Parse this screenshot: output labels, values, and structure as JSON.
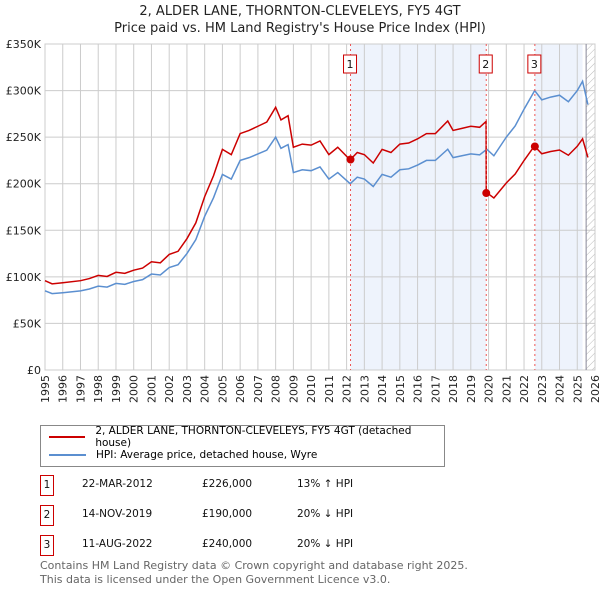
{
  "chart_data": {
    "type": "line",
    "title": "2, ALDER LANE, THORNTON-CLEVELEYS, FY5 4GT",
    "subtitle": "Price paid vs. HM Land Registry's House Price Index (HPI)",
    "xlim": [
      1995,
      2026
    ],
    "ylim": [
      0,
      350000
    ],
    "yticks": [
      0,
      50000,
      100000,
      150000,
      200000,
      250000,
      300000,
      350000
    ],
    "ytick_labels": [
      "£0",
      "£50K",
      "£100K",
      "£150K",
      "£200K",
      "£250K",
      "£300K",
      "£350K"
    ],
    "xticks": [
      "1995",
      "1996",
      "1997",
      "1998",
      "1999",
      "2000",
      "2001",
      "2002",
      "2003",
      "2004",
      "2005",
      "2006",
      "2007",
      "2008",
      "2009",
      "2010",
      "2011",
      "2012",
      "2013",
      "2014",
      "2015",
      "2016",
      "2017",
      "2018",
      "2019",
      "2020",
      "2021",
      "2022",
      "2023",
      "2024",
      "2025",
      "2026"
    ],
    "grid": true,
    "hpi": {
      "name": "HPI: Average price, detached house, Wyre",
      "color": "#5b8fd0",
      "x": [
        1995,
        1995.4,
        1996,
        1997,
        1997.5,
        1998,
        1998.5,
        1999,
        1999.5,
        2000,
        2000.5,
        2001,
        2001.5,
        2002,
        2002.5,
        2003,
        2003.5,
        2004,
        2004.5,
        2005,
        2005.5,
        2006,
        2006.5,
        2007,
        2007.5,
        2008,
        2008.3,
        2008.7,
        2009,
        2009.5,
        2010,
        2010.5,
        2011,
        2011.5,
        2012.2,
        2012.6,
        2013,
        2013.5,
        2014,
        2014.5,
        2015,
        2015.5,
        2016,
        2016.5,
        2017,
        2017.7,
        2018,
        2018.5,
        2019,
        2019.5,
        2019.9,
        2020.3,
        2021,
        2021.5,
        2022,
        2022.6,
        2023,
        2023.5,
        2024,
        2024.5,
        2025,
        2025.3,
        2025.6
      ],
      "y": [
        85000,
        82000,
        83000,
        85000,
        87000,
        90000,
        89000,
        93000,
        92000,
        95000,
        97000,
        103000,
        102000,
        110000,
        113000,
        125000,
        140000,
        165000,
        185000,
        210000,
        205000,
        225000,
        228000,
        232000,
        236000,
        250000,
        238000,
        242000,
        212000,
        215000,
        214000,
        218000,
        205000,
        212000,
        200000,
        207000,
        205000,
        197000,
        210000,
        207000,
        215000,
        216000,
        220000,
        225000,
        225000,
        237000,
        228000,
        230000,
        232000,
        231000,
        237000,
        230000,
        250000,
        262000,
        280000,
        300000,
        290000,
        293000,
        295000,
        288000,
        300000,
        310000,
        285000
      ]
    },
    "sales": [
      {
        "label": "1",
        "date": "22-MAR-2012",
        "x": 2012.22,
        "price": "£226,000",
        "value": 226000,
        "hpi_delta": "13% ↑ HPI"
      },
      {
        "label": "2",
        "date": "14-NOV-2019",
        "x": 2019.87,
        "price": "£190,000",
        "value": 190000,
        "hpi_delta": "20% ↓ HPI"
      },
      {
        "label": "3",
        "date": "11-AUG-2022",
        "x": 2022.61,
        "price": "£240,000",
        "value": 240000,
        "hpi_delta": "20% ↓ HPI"
      }
    ],
    "property": {
      "name": "2, ALDER LANE, THORNTON-CLEVELEYS, FY5 4GT (detached house)",
      "color": "#cc0000"
    },
    "shaded_ranges": [
      [
        2012.22,
        2019.87
      ],
      [
        2022.61,
        2025.3
      ]
    ],
    "forecast_from": 2025.5
  },
  "footer": [
    "Contains HM Land Registry data © Crown copyright and database right 2025.",
    "This data is licensed under the Open Government Licence v3.0."
  ]
}
